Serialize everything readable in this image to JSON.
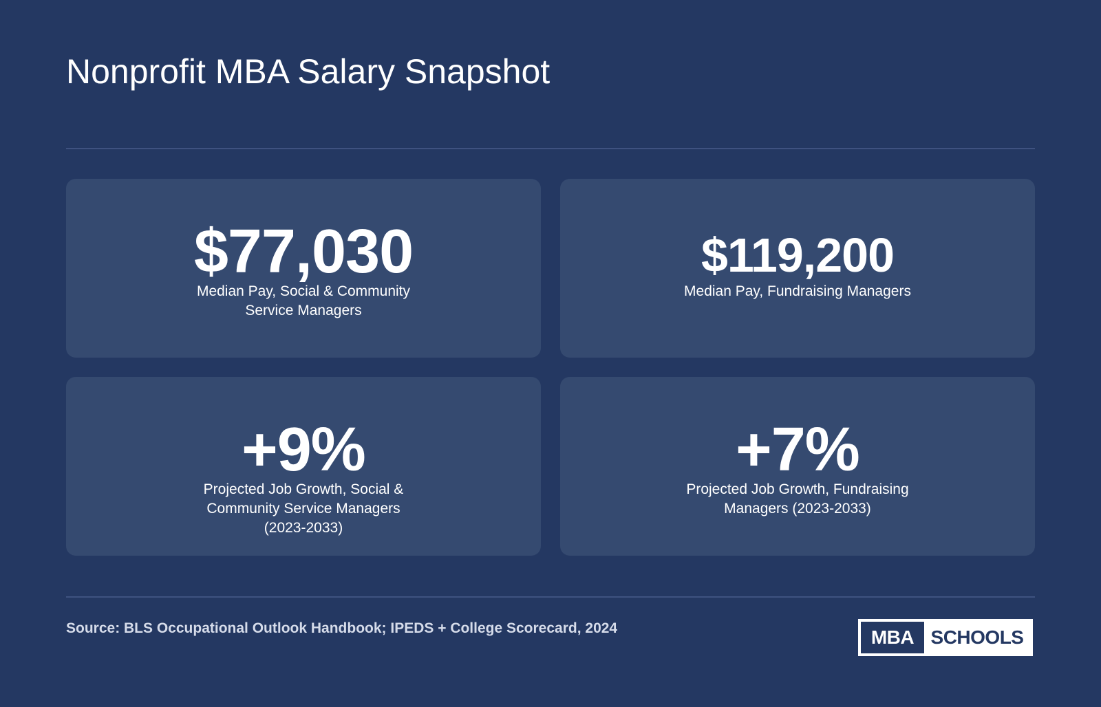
{
  "header": {
    "title": "Nonprofit MBA Salary Snapshot"
  },
  "stats": [
    {
      "value": "$77,030",
      "label": "Median Pay, Social & Community Service Managers"
    },
    {
      "value": "$119,200",
      "label": "Median Pay, Fundraising Managers"
    },
    {
      "value": "+9%",
      "label": "Projected Job Growth, Social & Community Service Managers (2023-2033)"
    },
    {
      "value": "+7%",
      "label": "Projected Job Growth, Fundraising Managers (2023-2033)"
    }
  ],
  "footer": {
    "source": "Source: BLS Occupational Outlook Handbook; IPEDS + College Scorecard, 2024",
    "logo_left": "MBA",
    "logo_right": "SCHOOLS"
  },
  "colors": {
    "background": "#243862",
    "card": "#354a70",
    "text": "#ffffff"
  }
}
